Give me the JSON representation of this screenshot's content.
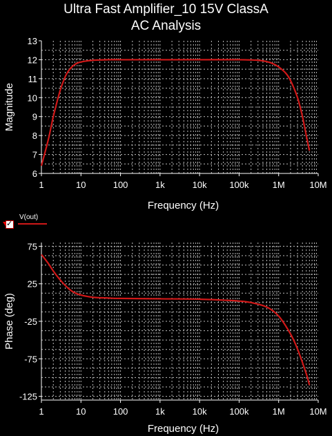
{
  "title": "Ultra Fast Amplifier_10 15V ClassA",
  "subtitle": "AC Analysis",
  "legend": {
    "label": "V(out)",
    "color": "#d01818"
  },
  "colors": {
    "background": "#000000",
    "grid": "#ffffff",
    "trace": "#d01818"
  },
  "chart_data": [
    {
      "type": "line",
      "xlabel": "Frequency (Hz)",
      "ylabel": "Magnitude",
      "xscale": "log",
      "xlim": [
        1,
        10000000
      ],
      "ylim": [
        6,
        13
      ],
      "xticks": [
        "1",
        "10",
        "100",
        "1k",
        "10k",
        "100k",
        "1M",
        "10M"
      ],
      "yticks": [
        "6",
        "7",
        "8",
        "9",
        "10",
        "11",
        "12",
        "13"
      ],
      "grid": true,
      "series": [
        {
          "name": "V(out)",
          "x": [
            1,
            1.5,
            2,
            3,
            4,
            5,
            7,
            10,
            20,
            50,
            100,
            1000,
            10000,
            100000,
            300000,
            500000,
            700000,
            1000000,
            1500000,
            2000000,
            3000000,
            4000000,
            5000000,
            6000000
          ],
          "y": [
            6.4,
            7.8,
            9.0,
            10.4,
            11.1,
            11.45,
            11.75,
            11.88,
            11.97,
            12.0,
            12.0,
            12.0,
            12.0,
            12.0,
            11.97,
            11.9,
            11.8,
            11.62,
            11.3,
            10.9,
            10.0,
            9.0,
            8.0,
            7.2
          ]
        }
      ]
    },
    {
      "type": "line",
      "xlabel": "Frequency (Hz)",
      "ylabel": "Phase (deg)",
      "xscale": "log",
      "xlim": [
        1,
        10000000
      ],
      "ylim": [
        -130,
        80
      ],
      "xticks": [
        "1",
        "10",
        "100",
        "1k",
        "10k",
        "100k",
        "1M",
        "10M"
      ],
      "yticks": [
        "75",
        "25",
        "-25",
        "-75",
        "-125"
      ],
      "grid": true,
      "series": [
        {
          "name": "V(out)",
          "x": [
            1,
            1.5,
            2,
            3,
            5,
            7,
            10,
            20,
            50,
            100,
            1000,
            10000,
            50000,
            100000,
            200000,
            500000,
            1000000,
            2000000,
            3000000,
            5000000,
            6000000
          ],
          "y": [
            64,
            52,
            42,
            30,
            18,
            13,
            10,
            7,
            6,
            5.5,
            5,
            4.5,
            3,
            2,
            0,
            -6,
            -18,
            -42,
            -62,
            -95,
            -110
          ]
        }
      ]
    }
  ]
}
